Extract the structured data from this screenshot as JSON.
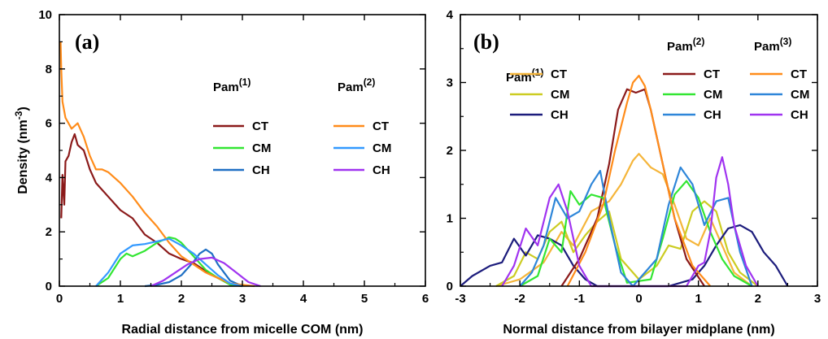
{
  "chart_data": [
    {
      "type": "line",
      "panel_label": "(a)",
      "xlabel": "Radial distance from micelle COM (nm)",
      "ylabel": "Density (nm",
      "ylabel_sup": "-3",
      "ylabel_end": ")",
      "xlim": [
        0,
        6
      ],
      "ylim": [
        0,
        10
      ],
      "xticks": [
        0,
        1,
        2,
        3,
        4,
        5,
        6
      ],
      "yticks": [
        0,
        2,
        4,
        6,
        8,
        10
      ],
      "legend_groups": [
        {
          "title": "Pam",
          "sup": "(1)",
          "entries": [
            "CT",
            "CM",
            "CH"
          ]
        },
        {
          "title": "Pam",
          "sup": "(2)",
          "entries": [
            "CT",
            "CM",
            "CH"
          ]
        }
      ],
      "series": [
        {
          "group": 0,
          "label": "CT",
          "color": "#8b1a1a",
          "x": [
            0.03,
            0.05,
            0.08,
            0.1,
            0.15,
            0.2,
            0.25,
            0.3,
            0.4,
            0.5,
            0.6,
            0.8,
            1.0,
            1.2,
            1.4,
            1.6,
            1.8,
            2.0,
            2.2,
            2.4,
            2.6,
            2.8,
            3.0
          ],
          "y": [
            2.5,
            4.1,
            3.0,
            4.6,
            4.8,
            5.3,
            5.6,
            5.2,
            5.0,
            4.3,
            3.8,
            3.3,
            2.8,
            2.5,
            1.9,
            1.6,
            1.2,
            1.0,
            0.85,
            0.55,
            0.3,
            0.1,
            0.0
          ]
        },
        {
          "group": 0,
          "label": "CM",
          "color": "#33e633",
          "x": [
            0.6,
            0.8,
            1.0,
            1.1,
            1.2,
            1.4,
            1.6,
            1.8,
            1.9,
            2.0,
            2.2,
            2.4,
            2.6,
            2.8,
            3.0
          ],
          "y": [
            0.0,
            0.3,
            1.0,
            1.2,
            1.1,
            1.3,
            1.6,
            1.8,
            1.75,
            1.6,
            1.1,
            0.6,
            0.3,
            0.05,
            0.0
          ]
        },
        {
          "group": 0,
          "label": "CH",
          "color": "#1f6fc4",
          "x": [
            1.4,
            1.6,
            1.8,
            2.0,
            2.2,
            2.3,
            2.4,
            2.5,
            2.6,
            2.8,
            3.0
          ],
          "y": [
            0.0,
            0.05,
            0.15,
            0.4,
            0.9,
            1.2,
            1.35,
            1.2,
            0.8,
            0.2,
            0.0
          ]
        },
        {
          "group": 1,
          "label": "CT",
          "color": "#ff8c1a",
          "x": [
            0.02,
            0.03,
            0.05,
            0.1,
            0.2,
            0.3,
            0.4,
            0.5,
            0.6,
            0.7,
            0.8,
            1.0,
            1.2,
            1.4,
            1.6,
            1.8,
            2.0,
            2.2,
            2.4,
            2.6,
            2.8,
            3.0,
            3.2
          ],
          "y": [
            9.0,
            8.0,
            6.8,
            6.2,
            5.8,
            6.0,
            5.5,
            4.8,
            4.3,
            4.3,
            4.2,
            3.8,
            3.3,
            2.7,
            2.2,
            1.6,
            1.1,
            0.8,
            0.5,
            0.3,
            0.1,
            0.05,
            0.0
          ]
        },
        {
          "group": 1,
          "label": "CM",
          "color": "#3399ff",
          "x": [
            0.6,
            0.8,
            1.0,
            1.2,
            1.4,
            1.6,
            1.8,
            2.0,
            2.2,
            2.4,
            2.6,
            2.8,
            3.0
          ],
          "y": [
            0.0,
            0.5,
            1.2,
            1.5,
            1.55,
            1.65,
            1.75,
            1.5,
            1.2,
            0.8,
            0.4,
            0.1,
            0.0
          ]
        },
        {
          "group": 1,
          "label": "CH",
          "color": "#a033f0",
          "x": [
            1.5,
            1.7,
            1.9,
            2.1,
            2.3,
            2.5,
            2.7,
            2.9,
            3.1,
            3.3
          ],
          "y": [
            0.0,
            0.2,
            0.5,
            0.8,
            1.0,
            1.05,
            0.85,
            0.5,
            0.15,
            0.0
          ]
        }
      ]
    },
    {
      "type": "line",
      "panel_label": "(b)",
      "xlabel": "Normal distance from bilayer midplane (nm)",
      "ylabel": "",
      "xlim": [
        -3,
        3
      ],
      "ylim": [
        0,
        4
      ],
      "xticks": [
        -3,
        -2,
        -1,
        0,
        1,
        2,
        3
      ],
      "yticks": [
        0,
        1,
        2,
        3,
        4
      ],
      "legend_groups": [
        {
          "title": "Pam",
          "sup": "(1)",
          "entries": [
            "CT",
            "CM",
            "CH"
          ]
        },
        {
          "title": "Pam",
          "sup": "(2)",
          "entries": [
            "CT",
            "CM",
            "CH"
          ]
        },
        {
          "title": "Pam",
          "sup": "(3)",
          "entries": [
            "CT",
            "CM",
            "CH"
          ]
        }
      ],
      "series": [
        {
          "group": 0,
          "label": "CT",
          "color": "#f5b53a",
          "x": [
            -2.4,
            -2.0,
            -1.6,
            -1.3,
            -1.1,
            -0.8,
            -0.5,
            -0.3,
            -0.1,
            0.0,
            0.2,
            0.4,
            0.6,
            0.8,
            1.0,
            1.2,
            1.4,
            1.6,
            1.9
          ],
          "y": [
            0.0,
            0.1,
            0.35,
            0.8,
            0.6,
            1.1,
            1.25,
            1.5,
            1.85,
            1.95,
            1.75,
            1.65,
            1.2,
            0.7,
            0.6,
            1.0,
            0.6,
            0.2,
            0.0
          ]
        },
        {
          "group": 0,
          "label": "CM",
          "color": "#cccc22",
          "x": [
            -2.4,
            -2.1,
            -1.9,
            -1.7,
            -1.5,
            -1.3,
            -1.1,
            -0.9,
            -0.7,
            -0.5,
            -0.3,
            0.0,
            0.3,
            0.5,
            0.7,
            0.9,
            1.1,
            1.3,
            1.5,
            1.7,
            2.0
          ],
          "y": [
            0.0,
            0.15,
            0.5,
            0.4,
            0.8,
            0.95,
            0.5,
            0.75,
            0.95,
            1.1,
            0.4,
            0.1,
            0.3,
            0.6,
            0.55,
            1.1,
            1.25,
            1.1,
            0.5,
            0.2,
            0.0
          ]
        },
        {
          "group": 0,
          "label": "CH",
          "color": "#1c1c7c",
          "x": [
            -3.0,
            -2.8,
            -2.5,
            -2.3,
            -2.1,
            -1.9,
            -1.7,
            -1.5,
            -1.3,
            -1.1,
            -0.9,
            -0.7,
            -0.5,
            0.5,
            0.7,
            0.9,
            1.1,
            1.3,
            1.5,
            1.7,
            1.9,
            2.1,
            2.3,
            2.5
          ],
          "y": [
            0.0,
            0.15,
            0.3,
            0.35,
            0.7,
            0.45,
            0.75,
            0.7,
            0.6,
            0.3,
            0.1,
            0.0,
            0.0,
            0.0,
            0.05,
            0.1,
            0.3,
            0.6,
            0.85,
            0.9,
            0.8,
            0.5,
            0.3,
            0.0
          ]
        },
        {
          "group": 1,
          "label": "CT",
          "color": "#8b1a1a",
          "x": [
            -1.3,
            -1.0,
            -0.7,
            -0.5,
            -0.35,
            -0.2,
            -0.05,
            0.1,
            0.2,
            0.4,
            0.6,
            0.8,
            1.1
          ],
          "y": [
            0.0,
            0.4,
            1.0,
            1.8,
            2.6,
            2.9,
            2.85,
            2.9,
            2.6,
            1.8,
            1.0,
            0.4,
            0.0
          ]
        },
        {
          "group": 1,
          "label": "CM",
          "color": "#33e633",
          "x": [
            -2.0,
            -1.7,
            -1.5,
            -1.3,
            -1.15,
            -1.0,
            -0.8,
            -0.6,
            -0.4,
            -0.2,
            0.2,
            0.4,
            0.6,
            0.8,
            1.0,
            1.2,
            1.4,
            1.6,
            1.9
          ],
          "y": [
            0.0,
            0.15,
            0.7,
            0.5,
            1.4,
            1.2,
            1.35,
            1.3,
            0.6,
            0.05,
            0.1,
            0.7,
            1.35,
            1.55,
            1.3,
            0.8,
            0.4,
            0.15,
            0.0
          ]
        },
        {
          "group": 1,
          "label": "CM_b",
          "color": "#2e86d9",
          "x": [
            -2.0,
            -1.8,
            -1.6,
            -1.4,
            -1.2,
            -1.0,
            -0.8,
            -0.65,
            -0.5,
            -0.3,
            -0.1,
            0.3,
            0.5,
            0.7,
            0.9,
            1.1,
            1.3,
            1.5,
            1.7,
            1.9
          ],
          "y": [
            0.0,
            0.2,
            0.6,
            1.3,
            1.0,
            1.1,
            1.5,
            1.7,
            1.0,
            0.2,
            0.0,
            0.4,
            1.2,
            1.75,
            1.5,
            0.9,
            1.25,
            1.3,
            0.5,
            0.0
          ]
        },
        {
          "group": 2,
          "label": "CT",
          "color": "#ff8c1a",
          "x": [
            -1.2,
            -0.9,
            -0.6,
            -0.4,
            -0.2,
            -0.1,
            0.0,
            0.1,
            0.2,
            0.4,
            0.6,
            0.9,
            1.2
          ],
          "y": [
            0.0,
            0.5,
            1.2,
            2.0,
            2.7,
            3.0,
            3.1,
            2.95,
            2.6,
            1.8,
            1.0,
            0.3,
            0.0
          ]
        },
        {
          "group": 2,
          "label": "CH",
          "color": "#a033f0",
          "x": [
            -2.3,
            -2.1,
            -1.9,
            -1.7,
            -1.5,
            -1.35,
            -1.2,
            -1.0,
            -0.8,
            0.8,
            1.0,
            1.1,
            1.2,
            1.3,
            1.4,
            1.5,
            1.6,
            1.8,
            2.0
          ],
          "y": [
            0.0,
            0.3,
            0.85,
            0.6,
            1.3,
            1.5,
            1.1,
            0.3,
            0.0,
            0.0,
            0.3,
            0.35,
            0.8,
            1.6,
            1.9,
            1.5,
            0.9,
            0.3,
            0.0
          ]
        }
      ]
    }
  ]
}
